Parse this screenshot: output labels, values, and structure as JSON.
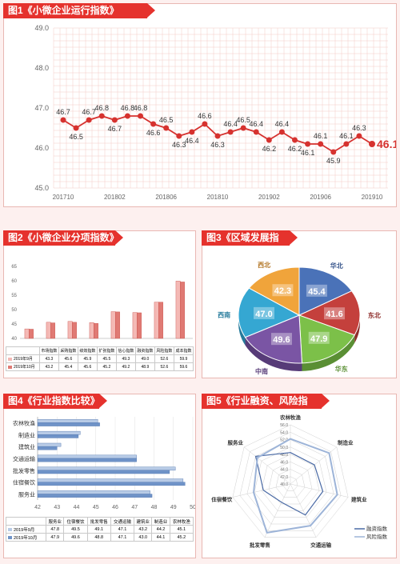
{
  "titles": {
    "fig1": "图1《小微企业运行指数》",
    "fig2": "图2《小微企业分项指数》",
    "fig3": "图3《区域发展指数》",
    "fig4": "图4《行业指数比较》",
    "fig5": "图5《行业融资、风险指数》"
  },
  "colors": {
    "brand_red": "#e5322d",
    "line_red": "#d6322f",
    "grid": "#f3c9c6"
  },
  "chart_data": [
    {
      "id": "fig1",
      "type": "line",
      "ylim": [
        45.0,
        49.0
      ],
      "yticks": [
        "45.0",
        "46.0",
        "47.0",
        "48.0",
        "49.0"
      ],
      "xticks": [
        "201710",
        "201802",
        "201806",
        "201810",
        "201902",
        "201906",
        "201910"
      ],
      "values": [
        46.7,
        46.5,
        46.7,
        46.8,
        46.7,
        46.8,
        46.8,
        46.6,
        46.5,
        46.3,
        46.4,
        46.6,
        46.3,
        46.4,
        46.5,
        46.4,
        46.2,
        46.4,
        46.2,
        46.1,
        46.1,
        45.9,
        46.1,
        46.3,
        46.1
      ]
    },
    {
      "id": "fig2",
      "type": "bar",
      "categories": [
        "市场指数",
        "采购指数",
        "绩效指数",
        "扩张指数",
        "信心指数",
        "融资指数",
        "风险指数",
        "成本指数"
      ],
      "ylim": [
        40,
        65
      ],
      "yticks": [
        "40",
        "45",
        "50",
        "55",
        "60",
        "65"
      ],
      "series": [
        {
          "name": "2019年9月",
          "values": [
            43.3,
            45.6,
            45.9,
            45.5,
            49.3,
            49.0,
            52.6,
            59.9
          ]
        },
        {
          "name": "2019年10月",
          "values": [
            43.2,
            45.4,
            45.6,
            45.2,
            49.2,
            48.9,
            52.6,
            59.6
          ]
        }
      ]
    },
    {
      "id": "fig3",
      "type": "pie",
      "labels": [
        "华北",
        "东北",
        "华东",
        "中南",
        "西南",
        "西北"
      ],
      "values": [
        45.4,
        41.6,
        47.9,
        49.6,
        47.0,
        42.3
      ]
    },
    {
      "id": "fig4",
      "type": "bar",
      "orientation": "horizontal",
      "categories": [
        "服务业",
        "住宿餐饮",
        "批发零售",
        "交通运输",
        "建筑业",
        "制造业",
        "农林牧渔"
      ],
      "xlim": [
        42,
        50
      ],
      "xticks": [
        "42",
        "43",
        "44",
        "45",
        "46",
        "47",
        "48",
        "49",
        "50"
      ],
      "series": [
        {
          "name": "2019年9月",
          "values": [
            47.8,
            49.5,
            49.1,
            47.1,
            43.2,
            44.2,
            45.1
          ]
        },
        {
          "name": "2019年10月",
          "values": [
            47.9,
            49.6,
            48.8,
            47.1,
            43.0,
            44.1,
            45.2
          ]
        }
      ]
    },
    {
      "id": "fig5",
      "type": "radar",
      "categories": [
        "农林牧渔",
        "制造业",
        "建筑业",
        "交通运输",
        "批发零售",
        "住宿餐饮",
        "服务业"
      ],
      "rticks": [
        "40.0",
        "42.0",
        "44.0",
        "46.0",
        "48.0",
        "50.0",
        "52.0",
        "54.0",
        "56.0"
      ],
      "rlim": [
        40,
        56
      ],
      "series": [
        {
          "name": "融资指数",
          "values": [
            48.5,
            48.3,
            49.0,
            49.3,
            45.5,
            47.5,
            52.0
          ]
        },
        {
          "name": "风险指数",
          "values": [
            52.2,
            53.4,
            53.0,
            52.5,
            54.6,
            50.2,
            51.4
          ]
        }
      ]
    }
  ]
}
